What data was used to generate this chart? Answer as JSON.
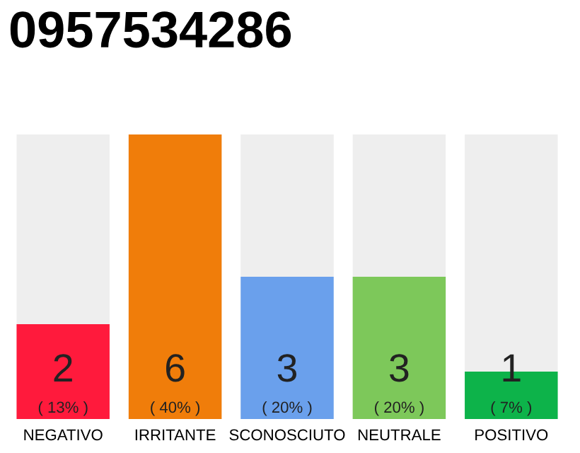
{
  "chart_data": {
    "type": "bar",
    "title": "0957534286",
    "categories": [
      "NEGATIVO",
      "IRRITANTE",
      "SCONOSCIUTO",
      "NEUTRALE",
      "POSITIVO"
    ],
    "values": [
      2,
      6,
      3,
      3,
      1
    ],
    "colors": [
      "#ff1a3c",
      "#f07d0a",
      "#6aa0ec",
      "#7dc85a",
      "#0db34a"
    ],
    "value_labels": [
      "2\n( 13% )",
      "6\n( 40% )",
      "3\n( 20% )",
      "3\n( 20% )",
      "1\n( 7% )"
    ],
    "grid": false,
    "legend": false
  }
}
